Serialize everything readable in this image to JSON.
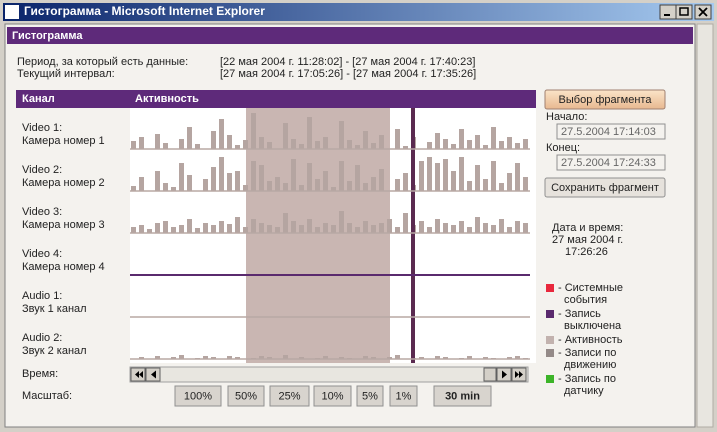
{
  "window": {
    "title": "Гистограмма - Microsoft Internet Explorer"
  },
  "panel": {
    "title": "Гистограмма"
  },
  "period": {
    "label": "Период, за который есть данные:",
    "value": "[22 мая 2004 г. 11:28:02] - [27 мая 2004 г. 17:40:23]"
  },
  "interval": {
    "label": "Текущий интервал:",
    "value": "[27 мая 2004 г. 17:05:26] - [27 мая 2004 г. 17:35:26]"
  },
  "table": {
    "headers": [
      "Канал",
      "Активность"
    ]
  },
  "channels": [
    {
      "name": "Video 1:",
      "desc": "Камера номер 1",
      "activity": [
        8,
        12,
        0,
        15,
        6,
        0,
        10,
        22,
        5,
        0,
        18,
        30,
        14,
        4,
        9,
        36,
        12,
        7,
        0,
        26,
        10,
        5,
        32,
        8,
        12,
        0,
        28,
        9,
        4,
        18,
        6,
        14,
        0,
        20,
        3,
        12,
        0,
        7,
        16,
        10,
        5,
        20,
        9,
        14,
        4,
        22,
        8,
        12,
        6,
        10
      ]
    },
    {
      "name": "Video 2:",
      "desc": "Камера номер 2",
      "activity": [
        5,
        14,
        0,
        20,
        8,
        4,
        28,
        16,
        0,
        12,
        24,
        34,
        18,
        20,
        6,
        30,
        26,
        10,
        14,
        8,
        32,
        6,
        28,
        12,
        20,
        4,
        30,
        10,
        26,
        8,
        14,
        22,
        0,
        12,
        18,
        6,
        30,
        34,
        28,
        32,
        20,
        34,
        10,
        26,
        12,
        30,
        8,
        18,
        28,
        14
      ]
    },
    {
      "name": "Video 3:",
      "desc": "Камера номер 3",
      "activity": [
        6,
        8,
        4,
        10,
        12,
        6,
        8,
        14,
        5,
        10,
        8,
        12,
        9,
        16,
        6,
        14,
        10,
        8,
        6,
        20,
        12,
        8,
        14,
        6,
        10,
        8,
        22,
        10,
        6,
        12,
        8,
        10,
        14,
        6,
        20,
        8,
        12,
        6,
        14,
        10,
        8,
        12,
        6,
        16,
        10,
        8,
        14,
        6,
        12,
        10
      ]
    },
    {
      "name": "Video 4:",
      "desc": "Камера номер 4"
    },
    {
      "name": "Audio 1:",
      "desc": "Звук 1 канал"
    },
    {
      "name": "Audio 2:",
      "desc": "Звук 2 канал",
      "activity": [
        0,
        2,
        0,
        3,
        0,
        2,
        4,
        0,
        1,
        3,
        2,
        0,
        3,
        2,
        0,
        1,
        3,
        2,
        0,
        4,
        0,
        2,
        0,
        1,
        3,
        0,
        2,
        1,
        0,
        3,
        2,
        0,
        2,
        4,
        0,
        1,
        2,
        0,
        3,
        2,
        0,
        1,
        3,
        0,
        2,
        1,
        0,
        2,
        3,
        1
      ]
    }
  ],
  "time_label": "Время:",
  "scale_label": "Масштаб:",
  "scale_buttons": [
    "100%",
    "50%",
    "25%",
    "10%",
    "5%",
    "1%",
    "30 min"
  ],
  "fragment_button": "Выбор фрагмента",
  "start": {
    "label": "Начало:",
    "value": "27.5.2004  17:14:03"
  },
  "end": {
    "label": "Конец:",
    "value": "27.5.2004  17:24:33"
  },
  "save_button": "Сохранить фрагмент",
  "datetime": {
    "label": "Дата и время:",
    "date": "27 мая 2004 г.",
    "time": "17:26:26"
  },
  "legend": [
    {
      "color": "#e8283c",
      "lines": [
        "- Системные",
        "события"
      ]
    },
    {
      "color": "#5a2a6e",
      "lines": [
        "- Запись",
        "выключена"
      ]
    },
    {
      "color": "#c2b2ae",
      "lines": [
        "- Активность"
      ]
    },
    {
      "color": "#948a88",
      "lines": [
        "- Записи по",
        "движению"
      ]
    },
    {
      "color": "#3cb428",
      "lines": [
        "- Запись по",
        "датчику"
      ]
    }
  ]
}
